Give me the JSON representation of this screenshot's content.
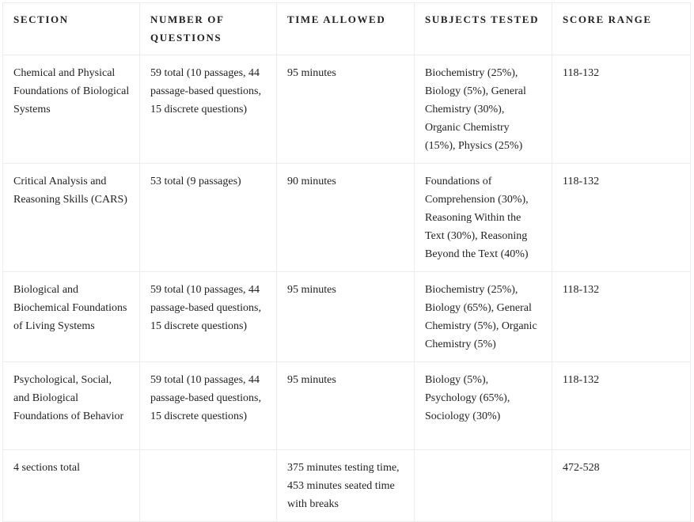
{
  "headers": [
    "SECTION",
    "NUMBER OF QUESTIONS",
    "TIME ALLOWED",
    "SUBJECTS TESTED",
    "SCORE RANGE"
  ],
  "rows": [
    [
      "Chemical and Physical Foundations of Biological Systems",
      "59 total (10 passages, 44 passage-based questions, 15 discrete questions)",
      "95 minutes",
      "Biochemistry (25%), Biology (5%), General Chemistry (30%), Organic Chemistry (15%), Physics (25%)",
      "118-132"
    ],
    [
      "Critical Analysis and Reasoning Skills (CARS)",
      "53 total (9 passages)",
      "90 minutes",
      "Foundations of Comprehension (30%), Reasoning Within the Text (30%), Reasoning Beyond the Text (40%)",
      "118-132"
    ],
    [
      "Biological and Biochemical Foundations of Living Systems",
      "59 total (10 passages, 44 passage-based questions, 15 discrete questions)",
      "95 minutes",
      "Biochemistry (25%), Biology (65%), General Chemistry (5%), Organic Chemistry (5%)",
      "118-132"
    ],
    [
      "Psychological, Social, and Biological Foundations of Behavior",
      "59 total (10 passages, 44 passage-based questions, 15 discrete questions)",
      "95 minutes",
      "Biology (5%), Psychology (65%), Sociology (30%)",
      "118-132"
    ],
    [
      "4 sections total",
      "",
      "375 minutes testing time, 453 minutes seated time with breaks",
      "",
      "472-528"
    ]
  ]
}
